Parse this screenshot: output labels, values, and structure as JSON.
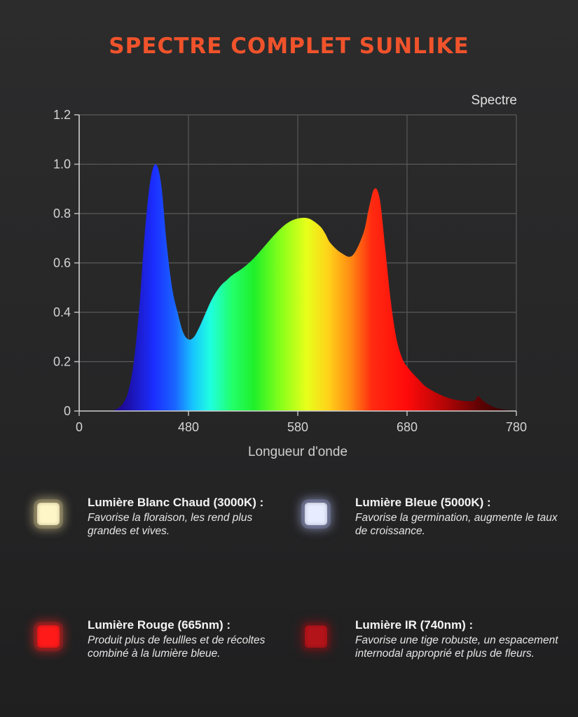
{
  "title": "SPECTRE COMPLET SUNLIKE",
  "chart_data": {
    "type": "area",
    "title": "SPECTRE COMPLET SUNLIKE",
    "xlabel": "Longueur d'onde",
    "ylabel": "",
    "legend": [
      "Spectre"
    ],
    "legend_position": "top-right",
    "grid": true,
    "xlim": [
      380,
      780
    ],
    "ylim": [
      0,
      1.2
    ],
    "x_tick_labels": [
      "0",
      "480",
      "580",
      "680",
      "780"
    ],
    "y_tick_labels": [
      "0",
      "0.2",
      "0.4",
      "0.6",
      "0.8",
      "1.0",
      "1.2"
    ],
    "y_ticks": [
      0,
      0.2,
      0.4,
      0.6,
      0.8,
      1.0,
      1.2
    ],
    "series": [
      {
        "name": "Spectre",
        "x": [
          380,
          400,
          410,
          415,
          420,
          425,
          430,
          435,
          440,
          445,
          450,
          455,
          460,
          465,
          470,
          475,
          480,
          485,
          490,
          495,
          500,
          505,
          510,
          515,
          520,
          530,
          540,
          550,
          560,
          570,
          580,
          590,
          600,
          605,
          610,
          620,
          630,
          640,
          645,
          650,
          655,
          660,
          665,
          670,
          675,
          680,
          690,
          700,
          720,
          740,
          745,
          750,
          760,
          770,
          780
        ],
        "values": [
          0.0,
          0.0,
          0.002,
          0.01,
          0.03,
          0.08,
          0.2,
          0.42,
          0.72,
          0.93,
          1.0,
          0.92,
          0.68,
          0.5,
          0.4,
          0.32,
          0.29,
          0.3,
          0.34,
          0.39,
          0.44,
          0.48,
          0.51,
          0.53,
          0.55,
          0.58,
          0.62,
          0.67,
          0.72,
          0.76,
          0.78,
          0.78,
          0.75,
          0.72,
          0.68,
          0.64,
          0.63,
          0.72,
          0.82,
          0.9,
          0.86,
          0.66,
          0.45,
          0.3,
          0.22,
          0.18,
          0.13,
          0.09,
          0.05,
          0.04,
          0.06,
          0.04,
          0.015,
          0.005,
          0.0
        ]
      }
    ]
  },
  "cards": [
    {
      "heading": "Lumière Blanc Chaud (3000K) :",
      "desc": "Favorise la floraison, les rend plus grandes et vives.",
      "color": "#fff6c8",
      "glow": "#f3e3a0"
    },
    {
      "heading": "Lumière Bleue (5000K) :",
      "desc": "Favorise la germination, augmente le taux de croissance.",
      "color": "#e8ecff",
      "glow": "#b9c3ff"
    },
    {
      "heading": "Lumière Rouge (665nm) :",
      "desc": "Produit plus de feullles et de récoltes combiné à la lumière bleue.",
      "color": "#ff1a1a",
      "glow": "#ff2020"
    },
    {
      "heading": "Lumière IR (740nm) :",
      "desc": "Favorise une tige robuste, un espacement internodal approprié et plus de fleurs.",
      "color": "#b3141a",
      "glow": "#8f0f14"
    }
  ]
}
